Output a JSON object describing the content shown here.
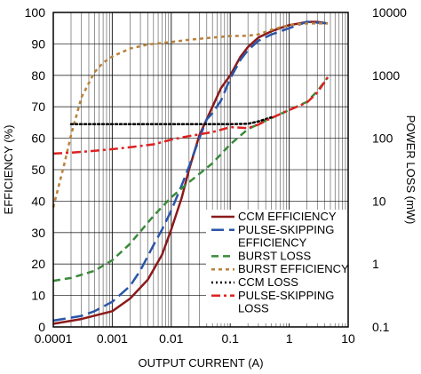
{
  "chart_data": {
    "type": "line",
    "title": "",
    "xlabel": "OUTPUT CURRENT (A)",
    "ylabel_left": "EFFICIENCY (%)",
    "ylabel_right": "POWER LOSS (mW)",
    "x_scale": "log",
    "xlim": [
      0.0001,
      10
    ],
    "ylim_left": [
      0,
      100
    ],
    "ylim_right": [
      0.1,
      10000
    ],
    "y_right_scale": "log",
    "grid": true,
    "legend_position": "bottom-right",
    "x_ticks": [
      "0.0001",
      "0.001",
      "0.01",
      "0.1",
      "1",
      "10"
    ],
    "y_left_ticks": [
      "0",
      "10",
      "20",
      "30",
      "40",
      "50",
      "60",
      "70",
      "80",
      "90",
      "100"
    ],
    "y_right_ticks": [
      "0.1",
      "1",
      "10",
      "100",
      "1000",
      "10000"
    ],
    "series": [
      {
        "name": "CCM EFFICIENCY",
        "axis": "left",
        "color": "#8b1a1a",
        "dash": "solid",
        "x": [
          0.0001,
          0.0003,
          0.001,
          0.002,
          0.004,
          0.007,
          0.01,
          0.015,
          0.02,
          0.03,
          0.05,
          0.07,
          0.1,
          0.15,
          0.2,
          0.3,
          0.5,
          0.7,
          1,
          1.5,
          2,
          3,
          4.5
        ],
        "y": [
          1,
          2.5,
          5,
          9,
          15,
          23,
          31,
          41,
          50,
          61,
          70,
          76,
          80,
          86,
          89,
          92,
          94,
          95,
          96,
          96.5,
          97,
          97,
          96.5
        ]
      },
      {
        "name": "PULSE-SKIPPING EFFICIENCY",
        "axis": "left",
        "color": "#2a55a8",
        "dash": "longdash",
        "x": [
          0.0001,
          0.0003,
          0.0005,
          0.001,
          0.002,
          0.003,
          0.005,
          0.007,
          0.01,
          0.015,
          0.02,
          0.03,
          0.04,
          0.05,
          0.07,
          0.1,
          0.15,
          0.2,
          0.3,
          0.5,
          1,
          2,
          4.5
        ],
        "y": [
          2,
          3.5,
          5,
          8,
          13,
          18,
          26,
          31,
          37,
          45,
          51,
          60,
          66,
          68,
          72,
          79,
          85,
          88,
          91,
          93,
          95,
          97,
          96.5
        ]
      },
      {
        "name": "BURST LOSS",
        "axis": "right",
        "color": "#3a8a3a",
        "dash": "dash",
        "x": [
          0.0001,
          0.0002,
          0.0005,
          0.001,
          0.002,
          0.005,
          0.01,
          0.02,
          0.05,
          0.1,
          0.2,
          0.5,
          1,
          2,
          3,
          4.5
        ],
        "y": [
          0.54,
          0.6,
          0.78,
          1.15,
          2.1,
          5.8,
          11.5,
          20,
          40,
          80,
          140,
          210,
          280,
          380,
          560,
          930
        ]
      },
      {
        "name": "BURST EFFICIENCY",
        "axis": "left",
        "color": "#b8813a",
        "dash": "shortdash",
        "x": [
          0.0001,
          0.00015,
          0.0002,
          0.0003,
          0.0005,
          0.0007,
          0.001,
          0.002,
          0.004,
          0.01,
          0.02,
          0.05,
          0.1,
          0.2,
          0.3,
          0.5,
          1,
          2,
          3,
          4.5
        ],
        "y": [
          38,
          51,
          61,
          73,
          81,
          84,
          86,
          88.5,
          89.8,
          90.6,
          91.3,
          92,
          92.5,
          92.6,
          93,
          94.5,
          96,
          96.5,
          96.5,
          96.5
        ]
      },
      {
        "name": "CCM LOSS",
        "axis": "right",
        "color": "#000000",
        "dash": "dot",
        "x": [
          0.0002,
          0.0005,
          0.001,
          0.003,
          0.01,
          0.03,
          0.1,
          0.2,
          0.3,
          0.5
        ],
        "y": [
          167,
          167,
          167,
          167,
          167,
          167,
          167,
          170,
          185,
          215
        ]
      },
      {
        "name": "PULSE-SKIPPING LOSS",
        "axis": "right",
        "color": "#dd2222",
        "dash": "dashdot",
        "x": [
          0.0001,
          0.0002,
          0.0005,
          0.001,
          0.002,
          0.005,
          0.01,
          0.02,
          0.05,
          0.1,
          0.2,
          0.3,
          0.5,
          1,
          2,
          3,
          4.5
        ],
        "y": [
          57,
          59,
          63,
          67,
          72,
          80,
          95,
          108,
          125,
          150,
          145,
          165,
          210,
          280,
          370,
          530,
          930
        ]
      }
    ]
  }
}
